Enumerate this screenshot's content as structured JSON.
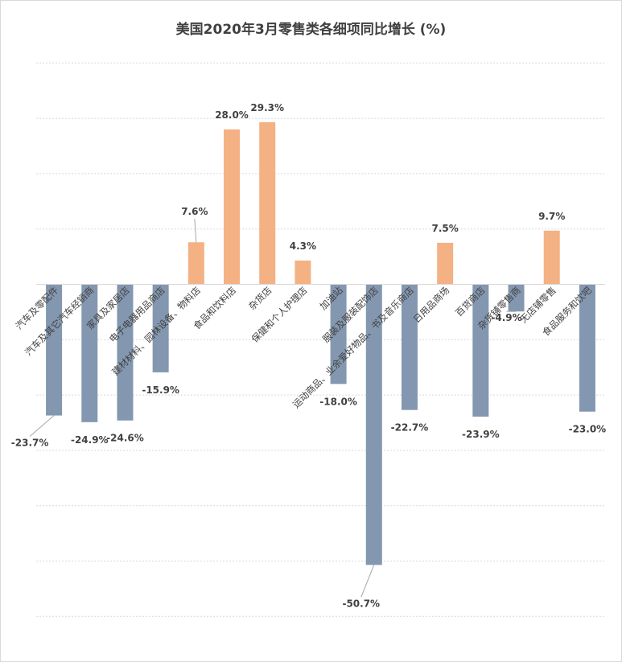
{
  "chart_data": {
    "type": "bar",
    "title": "美国2020年3月零售类各细项同比增长 (%)",
    "xlabel": "",
    "ylabel": "",
    "ylim": [
      -60,
      40
    ],
    "grid": true,
    "categories": [
      "汽车及零配件",
      "汽车及其它汽车经销商",
      "家具及家居店",
      "电子电器用品商店",
      "建材材料、园林设备、物料店",
      "食品和饮料店",
      "杂货店",
      "保健和个人护理店",
      "加油站",
      "服装及服装配饰店",
      "运动商品、业余爱好物品、书及音乐商店",
      "日用品商场",
      "百货商店",
      "杂货铺零售商",
      "无店铺零售",
      "食品服务和饮吧"
    ],
    "values": [
      -23.7,
      -24.9,
      -24.6,
      -15.9,
      7.6,
      28.0,
      29.3,
      4.3,
      -18.0,
      -50.7,
      -22.7,
      7.5,
      -23.9,
      -4.9,
      9.7,
      -23.0
    ],
    "value_labels": [
      "-23.7%",
      "-24.9%",
      "-24.6%",
      "-15.9%",
      "7.6%",
      "28.0%",
      "29.3%",
      "4.3%",
      "-18.0%",
      "-50.7%",
      "-22.7%",
      "7.5%",
      "-23.9%",
      "-4.9%",
      "9.7%",
      "-23.0%"
    ],
    "colors": {
      "positive": "#F4B183",
      "negative": "#8497B0",
      "grid": "#d9d9d9",
      "axis": "#d9d9d9",
      "text": "#404040"
    }
  }
}
